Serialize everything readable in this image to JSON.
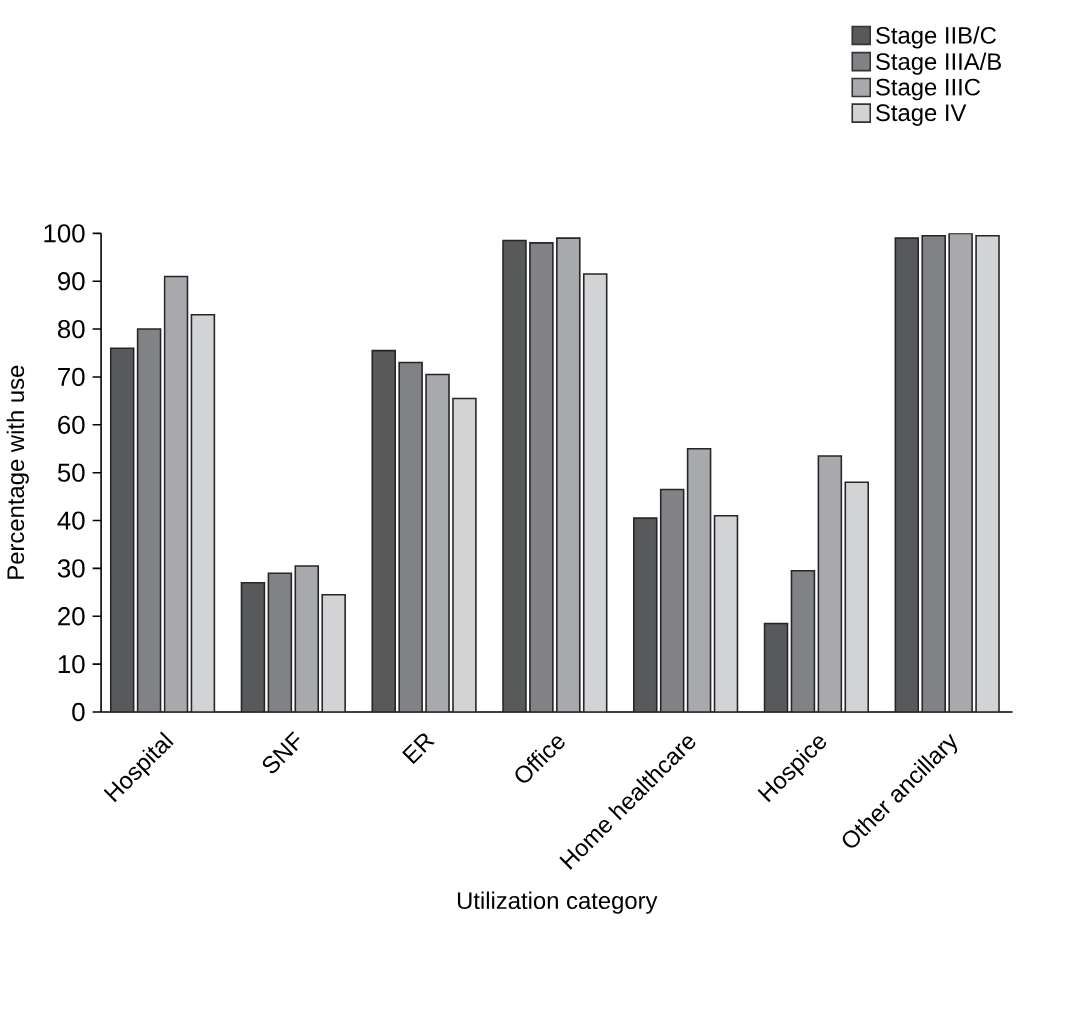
{
  "chart_data": {
    "type": "bar",
    "xlabel": "Utilization category",
    "ylabel": "Percentage with use",
    "categories": [
      "Hospital",
      "SNF",
      "ER",
      "Office",
      "Home healthcare",
      "Hospice",
      "Other ancillary"
    ],
    "series": [
      {
        "name": "Stage IIB/C",
        "color": "#58595b",
        "values": [
          76,
          27,
          75.5,
          98.5,
          40.5,
          18.5,
          99
        ]
      },
      {
        "name": "Stage IIIA/B",
        "color": "#808285",
        "values": [
          80,
          29,
          73,
          98,
          46.5,
          29.5,
          99.5
        ]
      },
      {
        "name": "Stage IIIC",
        "color": "#a7a9ac",
        "values": [
          91,
          30.5,
          70.5,
          99,
          55,
          53.5,
          100
        ]
      },
      {
        "name": "Stage IV",
        "color": "#d1d3d4",
        "values": [
          83,
          24.5,
          65.5,
          91.5,
          41,
          48,
          99.5
        ]
      }
    ],
    "ylim": [
      0,
      100
    ],
    "yticks": [
      0,
      10,
      20,
      30,
      40,
      50,
      60,
      70,
      80,
      90,
      100
    ],
    "grid": false,
    "legend": "top right"
  }
}
